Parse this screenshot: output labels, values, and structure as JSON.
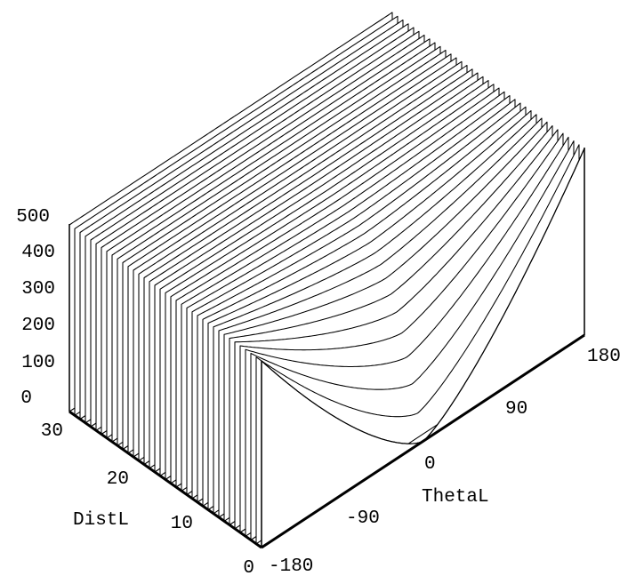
{
  "chart_data": {
    "type": "surface",
    "grid": false,
    "axes": {
      "x": {
        "label": "DistL",
        "range": [
          0,
          30
        ],
        "ticks": [
          "0",
          "10",
          "20",
          "30"
        ]
      },
      "y": {
        "label": "ThetaL",
        "range": [
          -180,
          180
        ],
        "ticks": [
          "-180",
          "-90",
          "0",
          "90",
          "180"
        ]
      },
      "z": {
        "label": "",
        "range": [
          0,
          500
        ],
        "ticks": [
          "0",
          "100",
          "200",
          "300",
          "400",
          "500"
        ]
      }
    },
    "surface": {
      "plateau_z": 500,
      "min_z": 0,
      "min_at": {
        "DistL": 0,
        "ThetaL": 0
      },
      "x_grid_lines": 36,
      "theta_samples": 160
    }
  }
}
